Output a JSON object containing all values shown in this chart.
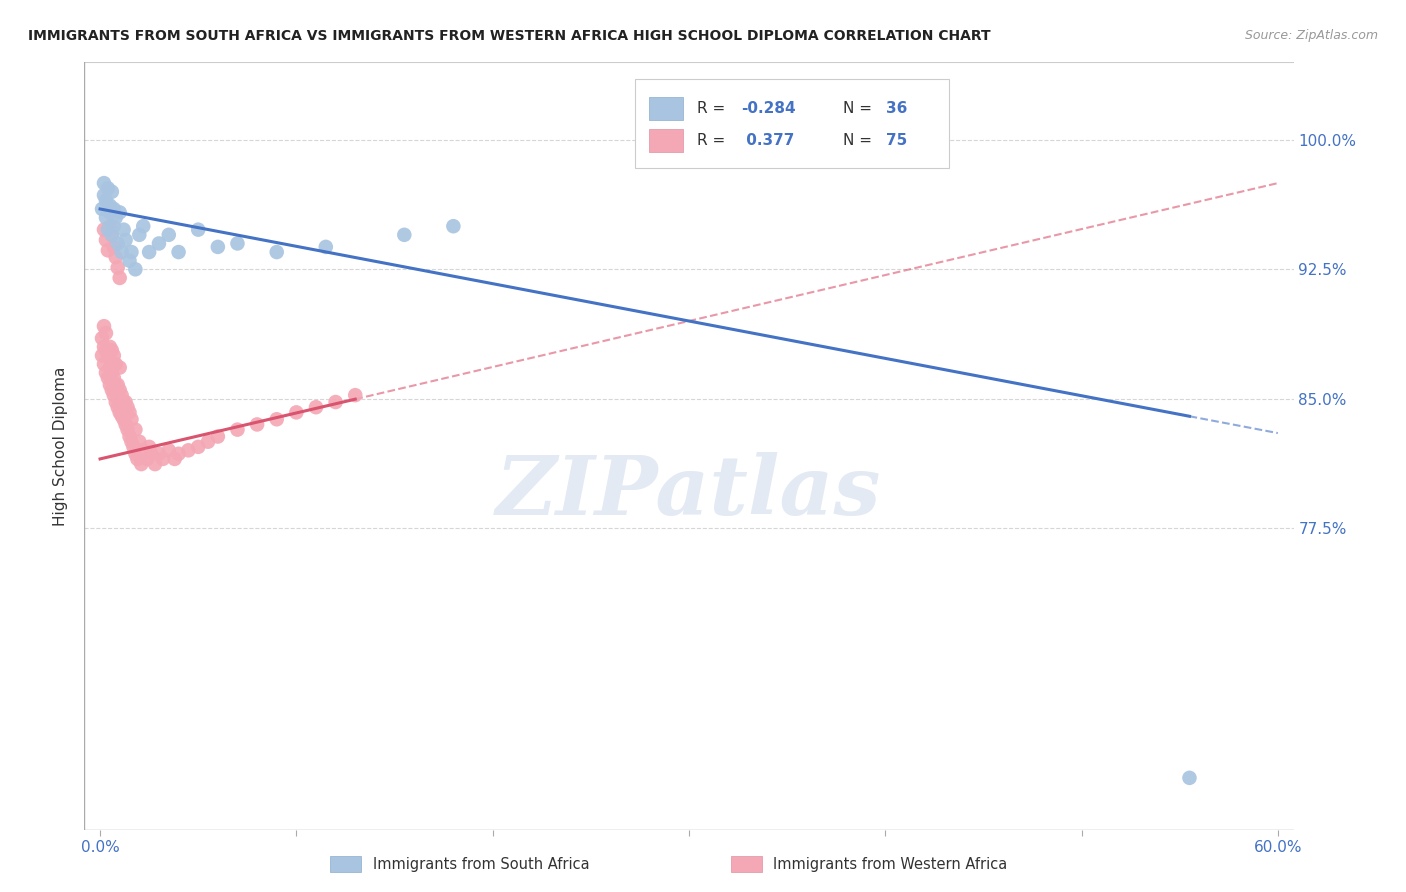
{
  "title": "IMMIGRANTS FROM SOUTH AFRICA VS IMMIGRANTS FROM WESTERN AFRICA HIGH SCHOOL DIPLOMA CORRELATION CHART",
  "source": "Source: ZipAtlas.com",
  "ylabel": "High School Diploma",
  "yticks": [
    0.775,
    0.85,
    0.925,
    1.0
  ],
  "ytick_labels": [
    "77.5%",
    "85.0%",
    "92.5%",
    "100.0%"
  ],
  "xlim": [
    0.0,
    0.6
  ],
  "ylim": [
    0.6,
    1.045
  ],
  "blue_R": -0.284,
  "blue_N": 36,
  "pink_R": 0.377,
  "pink_N": 75,
  "blue_color": "#a8c4e0",
  "blue_line_color": "#4472c4",
  "pink_color": "#f4a7b4",
  "pink_line_color": "#d9546e",
  "blue_line_y0": 0.96,
  "blue_line_y1": 0.83,
  "pink_line_y0": 0.815,
  "pink_line_y1": 0.975,
  "blue_scatter_x": [
    0.001,
    0.002,
    0.002,
    0.003,
    0.003,
    0.004,
    0.004,
    0.005,
    0.005,
    0.006,
    0.006,
    0.007,
    0.007,
    0.008,
    0.009,
    0.01,
    0.011,
    0.012,
    0.013,
    0.015,
    0.016,
    0.018,
    0.02,
    0.022,
    0.025,
    0.03,
    0.035,
    0.04,
    0.05,
    0.06,
    0.07,
    0.09,
    0.115,
    0.155,
    0.18,
    0.555
  ],
  "blue_scatter_y": [
    0.96,
    0.968,
    0.975,
    0.955,
    0.965,
    0.948,
    0.972,
    0.958,
    0.962,
    0.97,
    0.945,
    0.96,
    0.95,
    0.955,
    0.94,
    0.958,
    0.935,
    0.948,
    0.942,
    0.93,
    0.935,
    0.925,
    0.945,
    0.95,
    0.935,
    0.94,
    0.945,
    0.935,
    0.948,
    0.938,
    0.94,
    0.935,
    0.938,
    0.945,
    0.95,
    0.63
  ],
  "pink_scatter_x": [
    0.001,
    0.001,
    0.002,
    0.002,
    0.002,
    0.003,
    0.003,
    0.003,
    0.004,
    0.004,
    0.005,
    0.005,
    0.005,
    0.006,
    0.006,
    0.006,
    0.007,
    0.007,
    0.007,
    0.008,
    0.008,
    0.008,
    0.009,
    0.009,
    0.01,
    0.01,
    0.01,
    0.011,
    0.011,
    0.012,
    0.012,
    0.013,
    0.013,
    0.014,
    0.014,
    0.015,
    0.015,
    0.016,
    0.016,
    0.017,
    0.018,
    0.018,
    0.019,
    0.02,
    0.021,
    0.022,
    0.024,
    0.025,
    0.026,
    0.028,
    0.03,
    0.032,
    0.035,
    0.038,
    0.04,
    0.045,
    0.05,
    0.055,
    0.06,
    0.07,
    0.08,
    0.09,
    0.1,
    0.11,
    0.12,
    0.13,
    0.002,
    0.003,
    0.004,
    0.005,
    0.006,
    0.007,
    0.008,
    0.009,
    0.01
  ],
  "pink_scatter_y": [
    0.875,
    0.885,
    0.87,
    0.88,
    0.892,
    0.865,
    0.878,
    0.888,
    0.862,
    0.875,
    0.858,
    0.868,
    0.88,
    0.855,
    0.865,
    0.878,
    0.852,
    0.862,
    0.875,
    0.848,
    0.858,
    0.87,
    0.845,
    0.858,
    0.842,
    0.855,
    0.868,
    0.84,
    0.852,
    0.838,
    0.848,
    0.835,
    0.848,
    0.832,
    0.845,
    0.828,
    0.842,
    0.825,
    0.838,
    0.822,
    0.818,
    0.832,
    0.815,
    0.825,
    0.812,
    0.82,
    0.815,
    0.822,
    0.818,
    0.812,
    0.818,
    0.815,
    0.82,
    0.815,
    0.818,
    0.82,
    0.822,
    0.825,
    0.828,
    0.832,
    0.835,
    0.838,
    0.842,
    0.845,
    0.848,
    0.852,
    0.948,
    0.942,
    0.936,
    0.95,
    0.945,
    0.938,
    0.932,
    0.926,
    0.92
  ]
}
